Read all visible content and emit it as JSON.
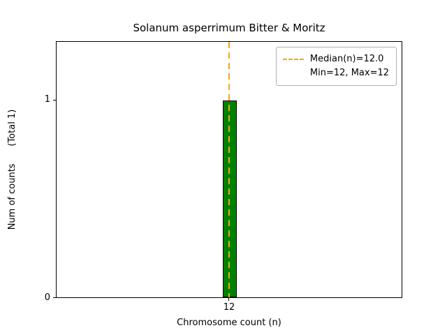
{
  "chart_data": {
    "type": "bar",
    "title": "Solanum asperrimum Bitter & Moritz",
    "categories": [
      12
    ],
    "values": [
      1
    ],
    "total_counts": 1,
    "xlabel": "Chromosome count (n)",
    "ylabel": "Num of counts      (Total 1)",
    "xticks": [
      "12"
    ],
    "yticks": [
      "0",
      "1"
    ],
    "ylim": [
      0,
      1.3
    ],
    "grid": false,
    "median": 12.0,
    "min": 12,
    "max": 12,
    "bar_color": "#008000",
    "bar_edge_color": "#000000",
    "median_line_color": "#FFA500",
    "legend": {
      "position": "upper-right",
      "entries": [
        "Median(n)=12.0",
        "Min=12, Max=12"
      ]
    }
  }
}
